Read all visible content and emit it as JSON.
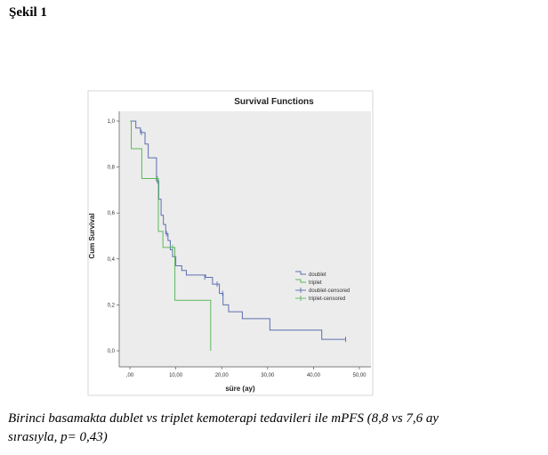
{
  "heading": "Şekil 1",
  "caption_line1": "Birinci basamakta dublet vs triplet kemoterapi tedavileri ile mPFS (8,8 vs 7,6 ay",
  "caption_line2": "sırasıyla, p= 0,43)",
  "colors": {
    "doublet": "#5b6fb0",
    "triplet": "#5cb85c",
    "plot_bg": "#ececec",
    "axis": "#555555"
  },
  "chart_data": {
    "type": "line",
    "title": "Survival Functions",
    "xlabel": "süre (ay)",
    "ylabel": "Cum Survival",
    "xlim": [
      0,
      50
    ],
    "ylim": [
      0,
      1
    ],
    "x_ticks": [
      0,
      10,
      20,
      30,
      40,
      50
    ],
    "x_tick_labels": [
      ",00",
      "10,00",
      "20,00",
      "30,00",
      "40,00",
      "50,00"
    ],
    "y_ticks": [
      0,
      0.2,
      0.4,
      0.6,
      0.8,
      1.0
    ],
    "y_tick_labels": [
      "0,0",
      "0,2",
      "0,4",
      "0,6",
      "0,8",
      "1,0"
    ],
    "grid": false,
    "legend_position": "center-right",
    "legend": [
      "doublet",
      "triplet",
      "doublet-censored",
      "triplet-censored"
    ],
    "series": [
      {
        "name": "doublet",
        "steps": [
          [
            0.3,
            1.0
          ],
          [
            1.3,
            0.97
          ],
          [
            2.3,
            0.95
          ],
          [
            3.3,
            0.9
          ],
          [
            4.0,
            0.84
          ],
          [
            5.8,
            0.74
          ],
          [
            6.3,
            0.66
          ],
          [
            6.8,
            0.59
          ],
          [
            7.3,
            0.55
          ],
          [
            7.8,
            0.51
          ],
          [
            8.3,
            0.48
          ],
          [
            8.8,
            0.44
          ],
          [
            9.3,
            0.41
          ],
          [
            10.0,
            0.37
          ],
          [
            11.3,
            0.35
          ],
          [
            12.3,
            0.33
          ],
          [
            16.5,
            0.32
          ],
          [
            18.0,
            0.29
          ],
          [
            19.5,
            0.25
          ],
          [
            20.3,
            0.2
          ],
          [
            21.5,
            0.17
          ],
          [
            24.5,
            0.14
          ],
          [
            30.5,
            0.09
          ],
          [
            41.8,
            0.05
          ],
          [
            47.0,
            0.05
          ]
        ],
        "censored": [
          [
            2.5,
            0.95
          ],
          [
            6.0,
            0.74
          ],
          [
            8.0,
            0.51
          ],
          [
            16.3,
            0.32
          ],
          [
            19.0,
            0.29
          ],
          [
            20.2,
            0.25
          ],
          [
            47.0,
            0.05
          ]
        ]
      },
      {
        "name": "triplet",
        "steps": [
          [
            0.0,
            1.0
          ],
          [
            0.3,
            0.88
          ],
          [
            2.6,
            0.75
          ],
          [
            6.2,
            0.52
          ],
          [
            7.2,
            0.45
          ],
          [
            9.8,
            0.22
          ],
          [
            17.6,
            0.0
          ]
        ],
        "censored": [
          [
            6.0,
            0.75
          ],
          [
            9.3,
            0.45
          ]
        ]
      }
    ]
  }
}
